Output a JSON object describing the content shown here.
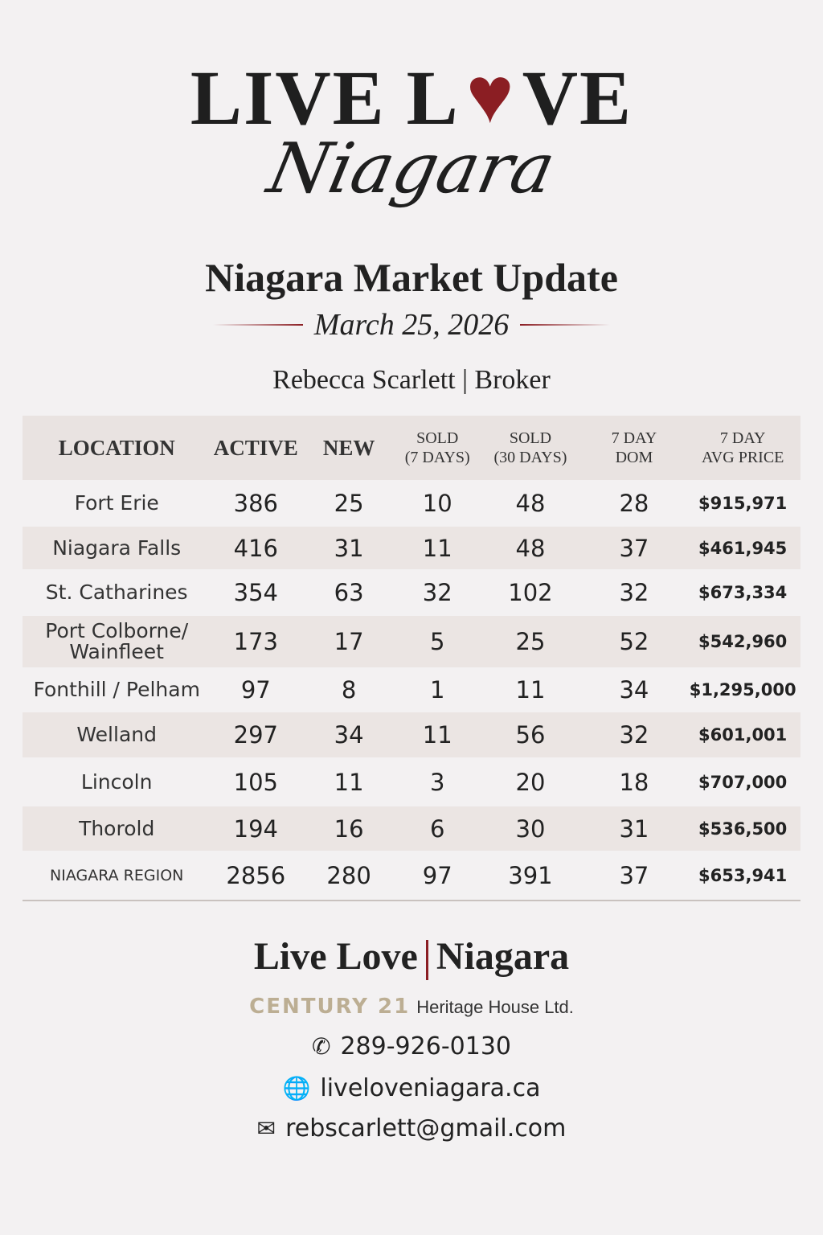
{
  "logo": {
    "line1_a": "LIVE L",
    "line1_b": "VE",
    "line2": "Niagara",
    "heart_color": "#8b1e23"
  },
  "header": {
    "title": "Niagara Market Update",
    "date": "March 25, 2026",
    "broker": "Rebecca Scarlett | Broker"
  },
  "table": {
    "columns": [
      {
        "l1": "LOCATION",
        "l2": ""
      },
      {
        "l1": "ACTIVE",
        "l2": ""
      },
      {
        "l1": "NEW",
        "l2": ""
      },
      {
        "l1": "SOLD",
        "l2": "(7 DAYS)"
      },
      {
        "l1": "SOLD",
        "l2": "(30 DAYS)"
      },
      {
        "l1": "7 DAY",
        "l2": "DOM"
      },
      {
        "l1": "7 DAY",
        "l2": "AVG PRICE"
      }
    ],
    "rows": [
      [
        "Fort Erie",
        "386",
        "25",
        "10",
        "48",
        "28",
        "$915,971"
      ],
      [
        "Niagara Falls",
        "416",
        "31",
        "11",
        "48",
        "37",
        "$461,945"
      ],
      [
        "St. Catharines",
        "354",
        "63",
        "32",
        "102",
        "32",
        "$673,334"
      ],
      [
        "Port Colborne/ Wainfleet",
        "173",
        "17",
        "5",
        "25",
        "52",
        "$542,960"
      ],
      [
        "Fonthill / Pelham",
        "97",
        "8",
        "1",
        "11",
        "34",
        "$1,295,000"
      ],
      [
        "Welland",
        "297",
        "34",
        "11",
        "56",
        "32",
        "$601,001"
      ],
      [
        "Lincoln",
        "105",
        "11",
        "3",
        "20",
        "18",
        "$707,000"
      ],
      [
        "Thorold",
        "194",
        "16",
        "6",
        "30",
        "31",
        "$536,500"
      ],
      [
        "NIAGARA REGION",
        "2856",
        "280",
        "97",
        "391",
        "37",
        "$653,941"
      ]
    ]
  },
  "footer": {
    "brand_left": "Live Love",
    "brand_right": "Niagara",
    "company": "CENTURY 21",
    "office": "Heritage House Ltd.",
    "phone": "289-926-0130",
    "website": "liveloveniagara.ca",
    "email": "rebscarlett@gmail.com"
  }
}
